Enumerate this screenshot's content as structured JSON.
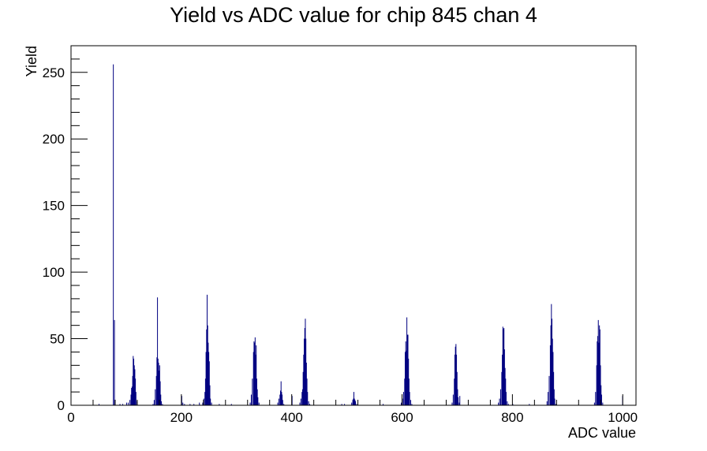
{
  "chart_data": {
    "type": "bar",
    "title": "Yield vs ADC value for chip 845 chan 4",
    "xlabel": "ADC value",
    "ylabel": "Yield",
    "xlim": [
      0,
      1024
    ],
    "ylim": [
      0,
      270
    ],
    "x_ticks": [
      "0",
      "200",
      "400",
      "600",
      "800",
      "1000"
    ],
    "y_ticks": [
      "0",
      "50",
      "100",
      "150",
      "200",
      "250"
    ],
    "x_tick_values": [
      0,
      200,
      400,
      600,
      800,
      1000
    ],
    "y_tick_values": [
      0,
      50,
      100,
      150,
      200,
      250
    ],
    "grid": false,
    "bar_color": "#000080",
    "bins": [
      [
        50,
        1
      ],
      [
        76,
        256
      ],
      [
        78,
        64
      ],
      [
        88,
        1
      ],
      [
        93,
        1
      ],
      [
        100,
        2
      ],
      [
        103,
        2
      ],
      [
        106,
        4
      ],
      [
        108,
        8
      ],
      [
        109,
        13
      ],
      [
        110,
        14
      ],
      [
        111,
        22
      ],
      [
        112,
        37
      ],
      [
        113,
        35
      ],
      [
        114,
        30
      ],
      [
        115,
        27
      ],
      [
        116,
        20
      ],
      [
        117,
        10
      ],
      [
        119,
        3
      ],
      [
        148,
        1
      ],
      [
        150,
        4
      ],
      [
        152,
        12
      ],
      [
        154,
        22
      ],
      [
        155,
        36
      ],
      [
        156,
        81
      ],
      [
        157,
        35
      ],
      [
        158,
        32
      ],
      [
        159,
        26
      ],
      [
        160,
        30
      ],
      [
        161,
        18
      ],
      [
        162,
        8
      ],
      [
        163,
        3
      ],
      [
        165,
        1
      ],
      [
        200,
        7
      ],
      [
        202,
        2
      ],
      [
        205,
        1
      ],
      [
        215,
        1
      ],
      [
        222,
        1
      ],
      [
        232,
        2
      ],
      [
        238,
        2
      ],
      [
        240,
        5
      ],
      [
        242,
        10
      ],
      [
        243,
        20
      ],
      [
        244,
        40
      ],
      [
        245,
        57
      ],
      [
        246,
        83
      ],
      [
        247,
        60
      ],
      [
        248,
        47
      ],
      [
        249,
        40
      ],
      [
        250,
        33
      ],
      [
        251,
        15
      ],
      [
        252,
        5
      ],
      [
        254,
        2
      ],
      [
        268,
        1
      ],
      [
        290,
        1
      ],
      [
        324,
        2
      ],
      [
        326,
        8
      ],
      [
        328,
        20
      ],
      [
        330,
        40
      ],
      [
        331,
        48
      ],
      [
        332,
        47
      ],
      [
        333,
        51
      ],
      [
        334,
        38
      ],
      [
        335,
        45
      ],
      [
        336,
        20
      ],
      [
        337,
        12
      ],
      [
        338,
        6
      ],
      [
        340,
        2
      ],
      [
        374,
        2
      ],
      [
        376,
        5
      ],
      [
        378,
        8
      ],
      [
        379,
        11
      ],
      [
        380,
        18
      ],
      [
        381,
        10
      ],
      [
        382,
        8
      ],
      [
        383,
        4
      ],
      [
        385,
        1
      ],
      [
        400,
        7
      ],
      [
        414,
        2
      ],
      [
        416,
        5
      ],
      [
        418,
        10
      ],
      [
        419,
        12
      ],
      [
        420,
        25
      ],
      [
        421,
        38
      ],
      [
        422,
        50
      ],
      [
        423,
        58
      ],
      [
        424,
        65
      ],
      [
        425,
        50
      ],
      [
        426,
        32
      ],
      [
        427,
        20
      ],
      [
        428,
        10
      ],
      [
        430,
        3
      ],
      [
        432,
        1
      ],
      [
        490,
        1
      ],
      [
        495,
        1
      ],
      [
        508,
        2
      ],
      [
        510,
        4
      ],
      [
        511,
        5
      ],
      [
        512,
        10
      ],
      [
        513,
        5
      ],
      [
        514,
        4
      ],
      [
        515,
        3
      ],
      [
        517,
        1
      ],
      [
        565,
        1
      ],
      [
        598,
        2
      ],
      [
        600,
        5
      ],
      [
        602,
        10
      ],
      [
        604,
        20
      ],
      [
        605,
        40
      ],
      [
        606,
        48
      ],
      [
        607,
        41
      ],
      [
        608,
        66
      ],
      [
        609,
        53
      ],
      [
        610,
        53
      ],
      [
        611,
        35
      ],
      [
        612,
        20
      ],
      [
        613,
        10
      ],
      [
        615,
        4
      ],
      [
        617,
        1
      ],
      [
        690,
        2
      ],
      [
        692,
        8
      ],
      [
        694,
        20
      ],
      [
        695,
        38
      ],
      [
        696,
        44
      ],
      [
        697,
        46
      ],
      [
        698,
        38
      ],
      [
        699,
        25
      ],
      [
        700,
        12
      ],
      [
        701,
        6
      ],
      [
        703,
        2
      ],
      [
        704,
        7
      ],
      [
        774,
        2
      ],
      [
        776,
        5
      ],
      [
        778,
        12
      ],
      [
        780,
        25
      ],
      [
        781,
        38
      ],
      [
        782,
        59
      ],
      [
        783,
        57
      ],
      [
        784,
        58
      ],
      [
        785,
        42
      ],
      [
        786,
        28
      ],
      [
        787,
        20
      ],
      [
        788,
        10
      ],
      [
        790,
        3
      ],
      [
        792,
        1
      ],
      [
        800,
        1
      ],
      [
        830,
        1
      ],
      [
        862,
        3
      ],
      [
        864,
        10
      ],
      [
        866,
        22
      ],
      [
        868,
        45
      ],
      [
        869,
        60
      ],
      [
        870,
        76
      ],
      [
        871,
        65
      ],
      [
        872,
        50
      ],
      [
        873,
        40
      ],
      [
        874,
        25
      ],
      [
        875,
        12
      ],
      [
        876,
        5
      ],
      [
        878,
        1
      ],
      [
        948,
        2
      ],
      [
        950,
        10
      ],
      [
        952,
        30
      ],
      [
        953,
        48
      ],
      [
        954,
        52
      ],
      [
        955,
        64
      ],
      [
        956,
        47
      ],
      [
        957,
        60
      ],
      [
        958,
        57
      ],
      [
        959,
        30
      ],
      [
        960,
        15
      ],
      [
        961,
        8
      ],
      [
        963,
        2
      ],
      [
        999,
        7
      ]
    ]
  }
}
